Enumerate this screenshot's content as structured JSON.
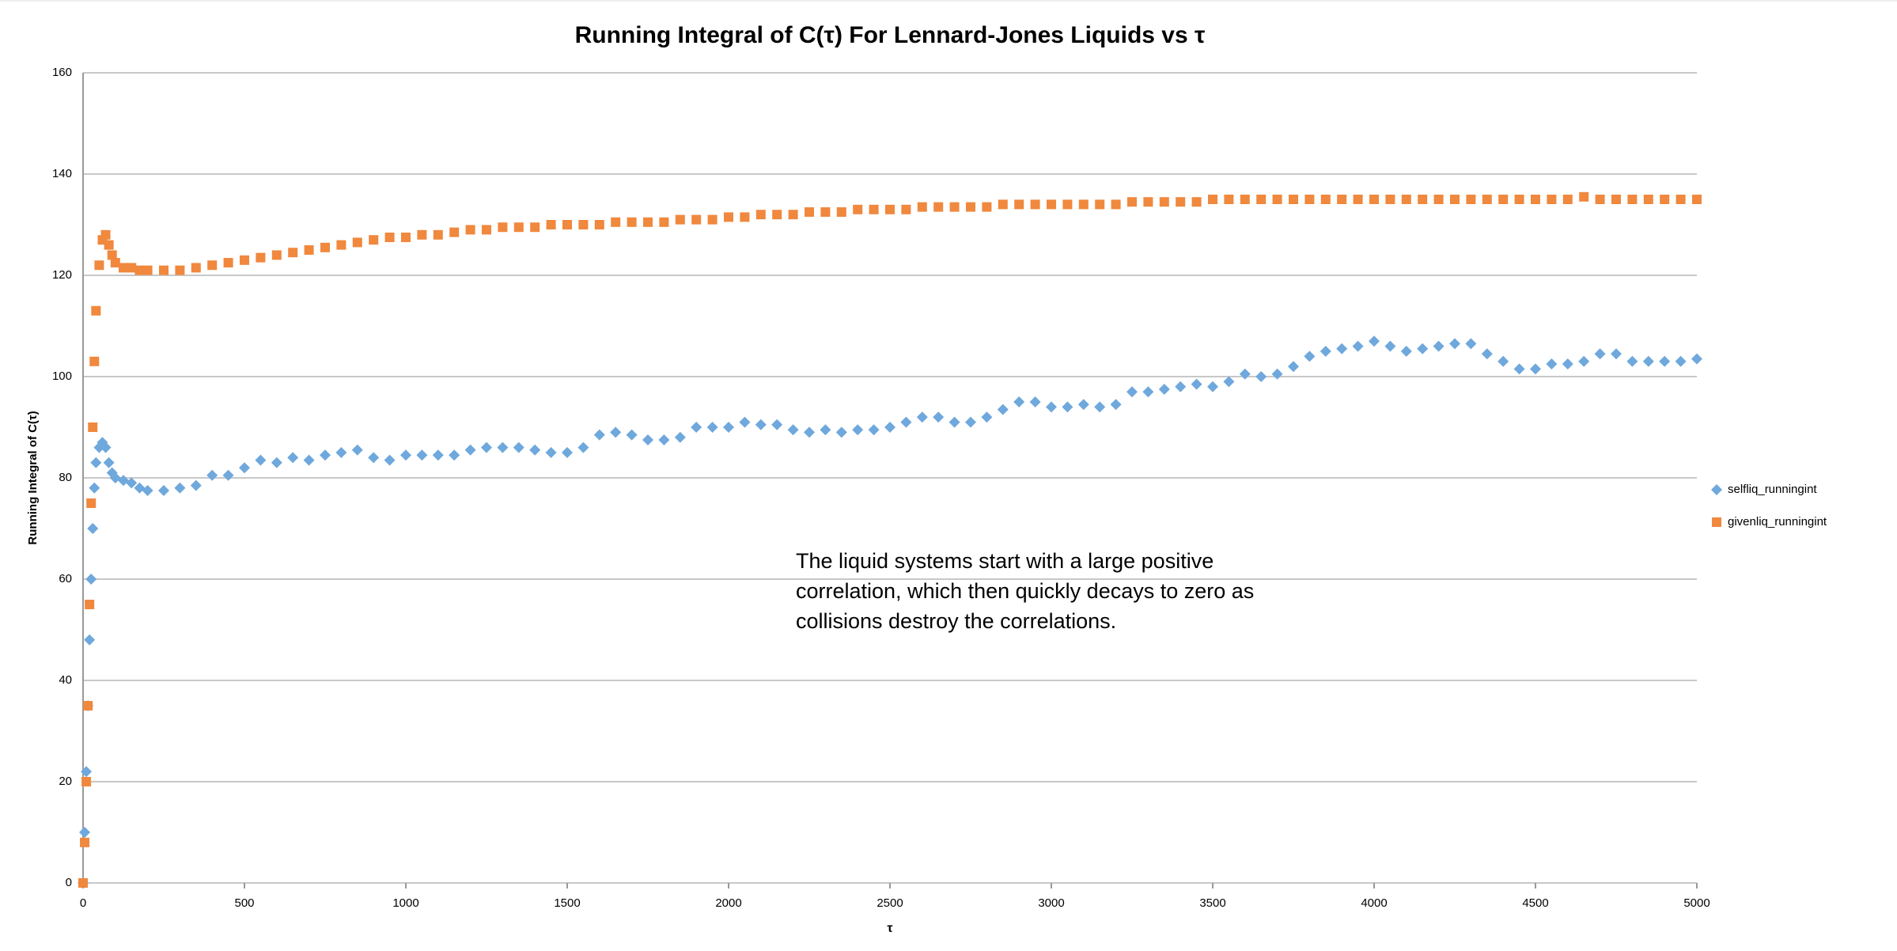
{
  "chart_data": {
    "type": "scatter",
    "title": "Running Integral of C(τ) For Lennard-Jones Liquids vs τ",
    "x_label": "τ",
    "y_label": "Running Integral of C(τ)",
    "annotation": "The liquid systems start with a large positive correlation, which then quickly decays to zero as collisions destroy the correlations.",
    "xlim": [
      0,
      5000
    ],
    "ylim": [
      0,
      160
    ],
    "xticks": [
      0,
      500,
      1000,
      1500,
      2000,
      2500,
      3000,
      3500,
      4000,
      4500,
      5000
    ],
    "yticks": [
      0,
      20,
      40,
      60,
      80,
      100,
      120,
      140,
      160
    ],
    "grid": true,
    "legend": "right",
    "x": [
      0,
      5,
      10,
      15,
      20,
      25,
      30,
      35,
      40,
      50,
      60,
      70,
      80,
      90,
      100,
      125,
      150,
      175,
      200,
      250,
      300,
      350,
      400,
      450,
      500,
      550,
      600,
      650,
      700,
      750,
      800,
      850,
      900,
      950,
      1000,
      1050,
      1100,
      1150,
      1200,
      1250,
      1300,
      1350,
      1400,
      1450,
      1500,
      1550,
      1600,
      1650,
      1700,
      1750,
      1800,
      1850,
      1900,
      1950,
      2000,
      2050,
      2100,
      2150,
      2200,
      2250,
      2300,
      2350,
      2400,
      2450,
      2500,
      2550,
      2600,
      2650,
      2700,
      2750,
      2800,
      2850,
      2900,
      2950,
      3000,
      3050,
      3100,
      3150,
      3200,
      3250,
      3300,
      3350,
      3400,
      3450,
      3500,
      3550,
      3600,
      3650,
      3700,
      3750,
      3800,
      3850,
      3900,
      3950,
      4000,
      4050,
      4100,
      4150,
      4200,
      4250,
      4300,
      4350,
      4400,
      4450,
      4500,
      4550,
      4600,
      4650,
      4700,
      4750,
      4800,
      4850,
      4900,
      4950,
      5000
    ],
    "series": [
      {
        "name": "selfliq_runningint",
        "color": "#6fa8dc",
        "marker": "diamond",
        "values": [
          0,
          10,
          22,
          35,
          48,
          60,
          70,
          78,
          83,
          86,
          87,
          86,
          83,
          81,
          80,
          79.5,
          79,
          78,
          77.5,
          77.5,
          78,
          78.5,
          80.5,
          80.5,
          82,
          83.5,
          83,
          84,
          83.5,
          84.5,
          85,
          85.5,
          84,
          83.5,
          84.5,
          84.5,
          84.5,
          84.5,
          85.5,
          86,
          86,
          86,
          85.5,
          85,
          85,
          86,
          88.5,
          89,
          88.5,
          87.5,
          87.5,
          88,
          90,
          90,
          90,
          91,
          90.5,
          90.5,
          89.5,
          89,
          89.5,
          89,
          89.5,
          89.5,
          90,
          91,
          92,
          92,
          91,
          91,
          92,
          93.5,
          95,
          95,
          94,
          94,
          94.5,
          94,
          94.5,
          97,
          97,
          97.5,
          98,
          98.5,
          98,
          99,
          100.5,
          100,
          100.5,
          102,
          104,
          105,
          105.5,
          106,
          107,
          106,
          105,
          105.5,
          106,
          106.5,
          106.5,
          104.5,
          103,
          101.5,
          101.5,
          102.5,
          102.5,
          103,
          104.5,
          104.5,
          103,
          103,
          103,
          103,
          103.5
        ]
      },
      {
        "name": "givenliq_runningint",
        "color": "#f0883e",
        "marker": "square",
        "values": [
          0,
          8,
          20,
          35,
          55,
          75,
          90,
          103,
          113,
          122,
          127,
          128,
          126,
          124,
          122.5,
          121.5,
          121.5,
          121,
          121,
          121,
          121,
          121.5,
          122,
          122.5,
          123,
          123.5,
          124,
          124.5,
          125,
          125.5,
          126,
          126.5,
          127,
          127.5,
          127.5,
          128,
          128,
          128.5,
          129,
          129,
          129.5,
          129.5,
          129.5,
          130,
          130,
          130,
          130,
          130.5,
          130.5,
          130.5,
          130.5,
          131,
          131,
          131,
          131.5,
          131.5,
          132,
          132,
          132,
          132.5,
          132.5,
          132.5,
          133,
          133,
          133,
          133,
          133.5,
          133.5,
          133.5,
          133.5,
          133.5,
          134,
          134,
          134,
          134,
          134,
          134,
          134,
          134,
          134.5,
          134.5,
          134.5,
          134.5,
          134.5,
          135,
          135,
          135,
          135,
          135,
          135,
          135,
          135,
          135,
          135,
          135,
          135,
          135,
          135,
          135,
          135,
          135,
          135,
          135,
          135,
          135,
          135,
          135,
          135.5,
          135,
          135,
          135,
          135,
          135,
          135,
          135
        ]
      }
    ]
  }
}
